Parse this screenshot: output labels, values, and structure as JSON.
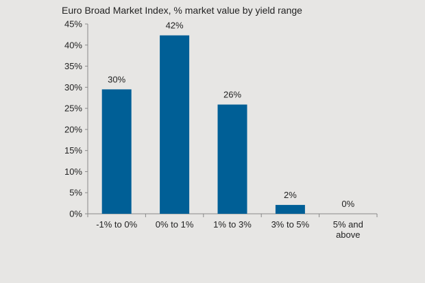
{
  "chart_data": {
    "type": "bar",
    "title": "Euro Broad Market Index, % market value by yield range",
    "xlabel": "",
    "ylabel": "",
    "categories": [
      [
        "-1% to 0%"
      ],
      [
        "0% to 1%"
      ],
      [
        "1% to 3%"
      ],
      [
        "3% to 5%"
      ],
      [
        "5% and",
        "above"
      ]
    ],
    "values": [
      29.5,
      42.3,
      25.9,
      2.1,
      0
    ],
    "data_labels": [
      "30%",
      "42%",
      "26%",
      "2%",
      "0%"
    ],
    "ylim": [
      0,
      45
    ],
    "yticks": [
      0,
      5,
      10,
      15,
      20,
      25,
      30,
      35,
      40,
      45
    ],
    "ytick_labels": [
      "0%",
      "5%",
      "10%",
      "15%",
      "20%",
      "25%",
      "30%",
      "35%",
      "40%",
      "45%"
    ],
    "grid": false,
    "legend": "none",
    "colors": {
      "bar": "#005f96",
      "background": "#e7e6e4",
      "axis": "#888888",
      "text": "#222222"
    }
  }
}
